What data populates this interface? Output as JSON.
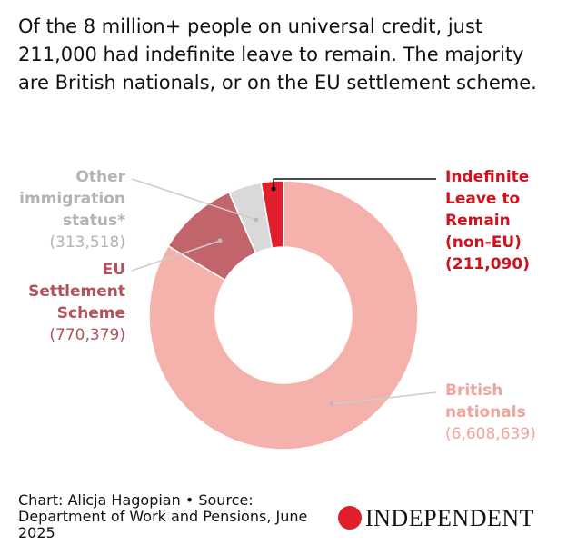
{
  "chart_data": {
    "type": "donut",
    "title": "Of the 8 million+ people on universal credit, just 211,000 had indefinite leave to remain. The majority are British nationals, or on the EU settlement scheme.",
    "categories": [
      "British nationals",
      "EU Settlement Scheme",
      "Other immigration status*",
      "Indefinite Leave to Remain (non-EU)"
    ],
    "values": [
      6608639,
      770379,
      313518,
      211090
    ],
    "value_labels": [
      "(6,608,639)",
      "(770,379)",
      "(313,518)",
      "(211,090)"
    ],
    "colors": [
      "#f5b1ab",
      "#c2646b",
      "#d9d9d9",
      "#e01e2c"
    ],
    "label_colors": [
      "#f0a49c",
      "#b3525a",
      "#b3b3b3",
      "#d0121e"
    ],
    "source": "Chart: Alicja Hagopian • Source: Department of Work and Pensions, June 2025",
    "logo": "INDEPENDENT"
  }
}
